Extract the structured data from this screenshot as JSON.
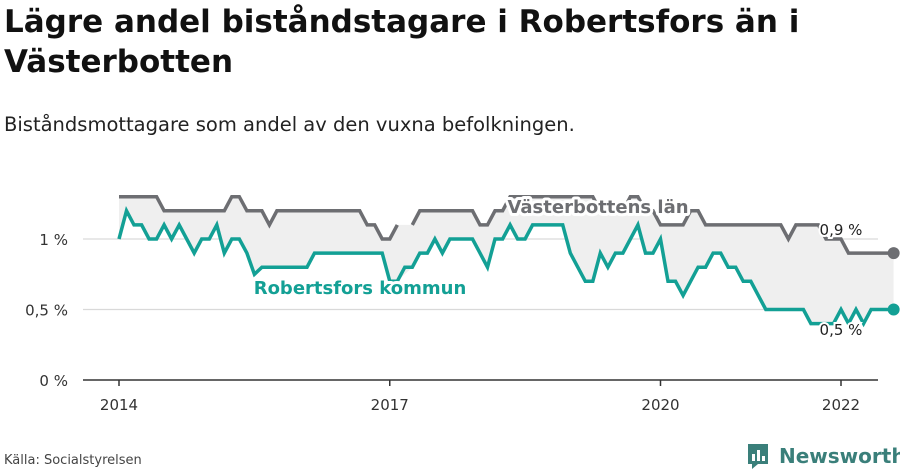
{
  "title": "Lägre andel biståndstagare i Robertsfors än i Västerbotten",
  "subtitle": "Biståndsmottagare som andel av den vuxna befolkningen.",
  "source": "Källa: Socialstyrelsen",
  "brand": {
    "name": "Newsworthy",
    "icon": "newsworthy-logo-icon"
  },
  "colors": {
    "kommun": "#13a095",
    "lan": "#6d6e72",
    "fill": "#efefef",
    "grid": "#d9d9d9"
  },
  "chart_data": {
    "type": "line",
    "title": "Lägre andel biståndstagare i Robertsfors än i Västerbotten",
    "subtitle": "Biståndsmottagare som andel av den vuxna befolkningen.",
    "x_ticks": [
      "2014",
      "2017",
      "2020",
      "2022"
    ],
    "y_ticks": [
      "0 %",
      "0,5 %",
      "1 %"
    ],
    "ylim": [
      0,
      1.3
    ],
    "x_range": [
      "2014-01",
      "2022-01"
    ],
    "end_labels": [
      "0,9 %",
      "0,5 %"
    ],
    "series": [
      {
        "name": "Västerbottens län",
        "start": "2014-01",
        "values": [
          1.3,
          1.3,
          1.3,
          1.3,
          1.3,
          1.3,
          1.2,
          1.2,
          1.2,
          1.2,
          1.2,
          1.2,
          1.2,
          1.2,
          1.2,
          1.3,
          1.3,
          1.2,
          1.2,
          1.2,
          1.1,
          1.2,
          1.2,
          1.2,
          1.2,
          1.2,
          1.2,
          1.2,
          1.2,
          1.2,
          1.2,
          1.2,
          1.2,
          1.1,
          1.1,
          1.0,
          1.0,
          1.1,
          null,
          1.1,
          1.2,
          1.2,
          1.2,
          1.2,
          1.2,
          1.2,
          1.2,
          1.2,
          1.1,
          1.1,
          1.2,
          1.2,
          1.3,
          1.3,
          1.3,
          1.3,
          1.3,
          1.3,
          1.3,
          1.3,
          1.3,
          1.3,
          1.3,
          1.3,
          1.2,
          1.2,
          1.2,
          1.2,
          1.3,
          1.3,
          1.2,
          1.2,
          1.1,
          1.1,
          1.1,
          1.1,
          1.2,
          1.2,
          1.1,
          1.1,
          1.1,
          1.1,
          1.1,
          1.1,
          1.1,
          1.1,
          1.1,
          1.1,
          1.1,
          1.0,
          1.1,
          1.1,
          1.1,
          1.1,
          1.0,
          1.0,
          1.0,
          0.9,
          0.9,
          0.9,
          0.9,
          0.9,
          0.9,
          0.9
        ]
      },
      {
        "name": "Robertsfors kommun",
        "start": "2014-01",
        "values": [
          1.0,
          1.2,
          1.1,
          1.1,
          1.0,
          1.0,
          1.1,
          1.0,
          1.1,
          1.0,
          0.9,
          1.0,
          1.0,
          1.1,
          0.9,
          1.0,
          1.0,
          0.9,
          0.75,
          0.8,
          0.8,
          0.8,
          0.8,
          0.8,
          0.8,
          0.8,
          0.9,
          0.9,
          0.9,
          0.9,
          0.9,
          0.9,
          0.9,
          0.9,
          0.9,
          0.9,
          0.7,
          0.7,
          0.8,
          0.8,
          0.9,
          0.9,
          1.0,
          0.9,
          1.0,
          1.0,
          1.0,
          1.0,
          0.9,
          0.8,
          1.0,
          1.0,
          1.1,
          1.0,
          1.0,
          1.1,
          1.1,
          1.1,
          1.1,
          1.1,
          0.9,
          0.8,
          0.7,
          0.7,
          0.9,
          0.8,
          0.9,
          0.9,
          1.0,
          1.1,
          0.9,
          0.9,
          1.0,
          0.7,
          0.7,
          0.6,
          0.7,
          0.8,
          0.8,
          0.9,
          0.9,
          0.8,
          0.8,
          0.7,
          0.7,
          0.6,
          0.5,
          0.5,
          0.5,
          0.5,
          0.5,
          0.5,
          0.4,
          0.4,
          0.4,
          0.4,
          0.5,
          0.4,
          0.5,
          0.4,
          0.5,
          0.5,
          0.5,
          0.5
        ]
      }
    ]
  }
}
